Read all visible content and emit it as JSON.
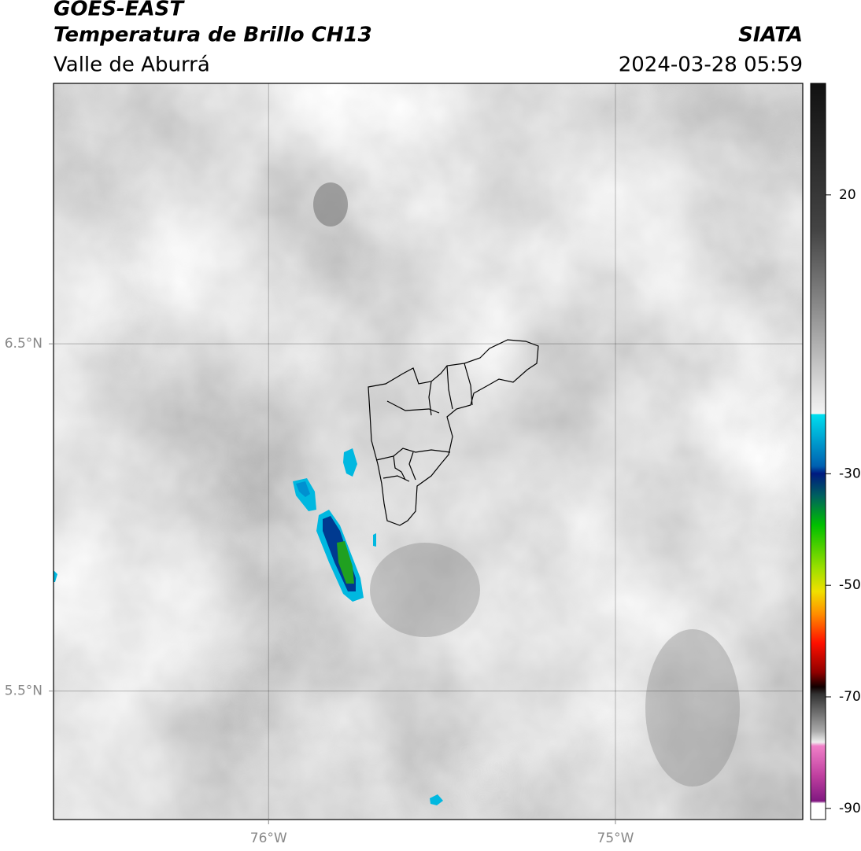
{
  "header": {
    "title": "GOES-EAST",
    "subtitle": "Temperatura de Brillo CH13",
    "region": "Valle de Aburrá",
    "source": "SIATA",
    "datetime": "2024-03-28 05:59"
  },
  "map": {
    "xlim": [
      -76.62,
      -74.46
    ],
    "ylim": [
      5.13,
      7.25
    ],
    "xticks": [
      {
        "value": -76,
        "label": "76°W"
      },
      {
        "value": -75,
        "label": "75°W"
      }
    ],
    "yticks": [
      {
        "value": 6.5,
        "label": "6.5°N"
      },
      {
        "value": 5.5,
        "label": "5.5°N"
      }
    ],
    "grid": true
  },
  "colorbar": {
    "lim": [
      -92,
      40
    ],
    "ticks": [
      20,
      -30,
      -50,
      -70,
      -90
    ]
  }
}
